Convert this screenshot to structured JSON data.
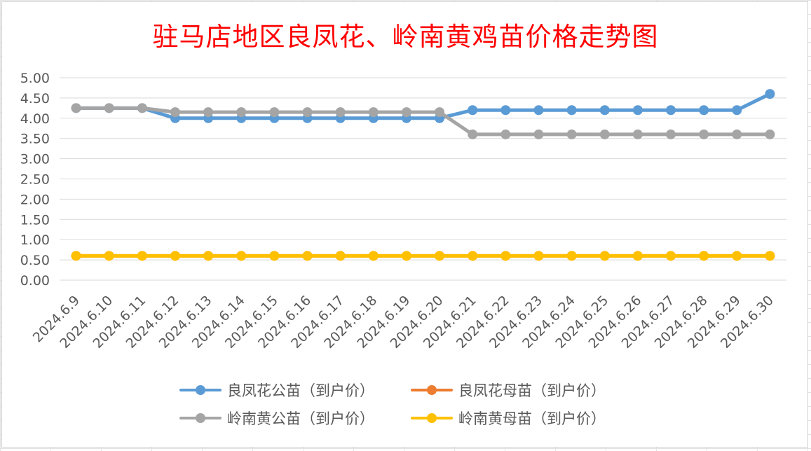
{
  "chart_data": {
    "type": "line",
    "title": "驻马店地区良凤花、岭南黄鸡苗价格走势图",
    "xlabel": "",
    "ylabel": "",
    "ylim": [
      0,
      5
    ],
    "yticks": [
      "0.00",
      "0.50",
      "1.00",
      "1.50",
      "2.00",
      "2.50",
      "3.00",
      "3.50",
      "4.00",
      "4.50",
      "5.00"
    ],
    "categories": [
      "2024.6.9",
      "2024.6.10",
      "2024.6.11",
      "2024.6.12",
      "2024.6.13",
      "2024.6.14",
      "2024.6.15",
      "2024.6.16",
      "2024.6.17",
      "2024.6.18",
      "2024.6.19",
      "2024.6.20",
      "2024.6.21",
      "2024.6.22",
      "2024.6.23",
      "2024.6.24",
      "2024.6.25",
      "2024.6.26",
      "2024.6.27",
      "2024.6.28",
      "2024.6.29",
      "2024.6.30"
    ],
    "series": [
      {
        "name": "良凤花公苗（到户价）",
        "color": "#5b9bd5",
        "values": [
          4.25,
          4.25,
          4.25,
          4.0,
          4.0,
          4.0,
          4.0,
          4.0,
          4.0,
          4.0,
          4.0,
          4.0,
          4.2,
          4.2,
          4.2,
          4.2,
          4.2,
          4.2,
          4.2,
          4.2,
          4.2,
          4.6
        ]
      },
      {
        "name": "良凤花母苗（到户价）",
        "color": "#ed7d31",
        "values": [
          0.6,
          0.6,
          0.6,
          0.6,
          0.6,
          0.6,
          0.6,
          0.6,
          0.6,
          0.6,
          0.6,
          0.6,
          0.6,
          0.6,
          0.6,
          0.6,
          0.6,
          0.6,
          0.6,
          0.6,
          0.6,
          0.6
        ]
      },
      {
        "name": "岭南黄公苗（到户价）",
        "color": "#a5a5a5",
        "values": [
          4.25,
          4.25,
          4.25,
          4.15,
          4.15,
          4.15,
          4.15,
          4.15,
          4.15,
          4.15,
          4.15,
          4.15,
          3.6,
          3.6,
          3.6,
          3.6,
          3.6,
          3.6,
          3.6,
          3.6,
          3.6,
          3.6
        ]
      },
      {
        "name": "岭南黄母苗（到户价）",
        "color": "#ffc000",
        "values": [
          0.6,
          0.6,
          0.6,
          0.6,
          0.6,
          0.6,
          0.6,
          0.6,
          0.6,
          0.6,
          0.6,
          0.6,
          0.6,
          0.6,
          0.6,
          0.6,
          0.6,
          0.6,
          0.6,
          0.6,
          0.6,
          0.6
        ]
      }
    ],
    "grid": true,
    "legend_position": "bottom"
  }
}
